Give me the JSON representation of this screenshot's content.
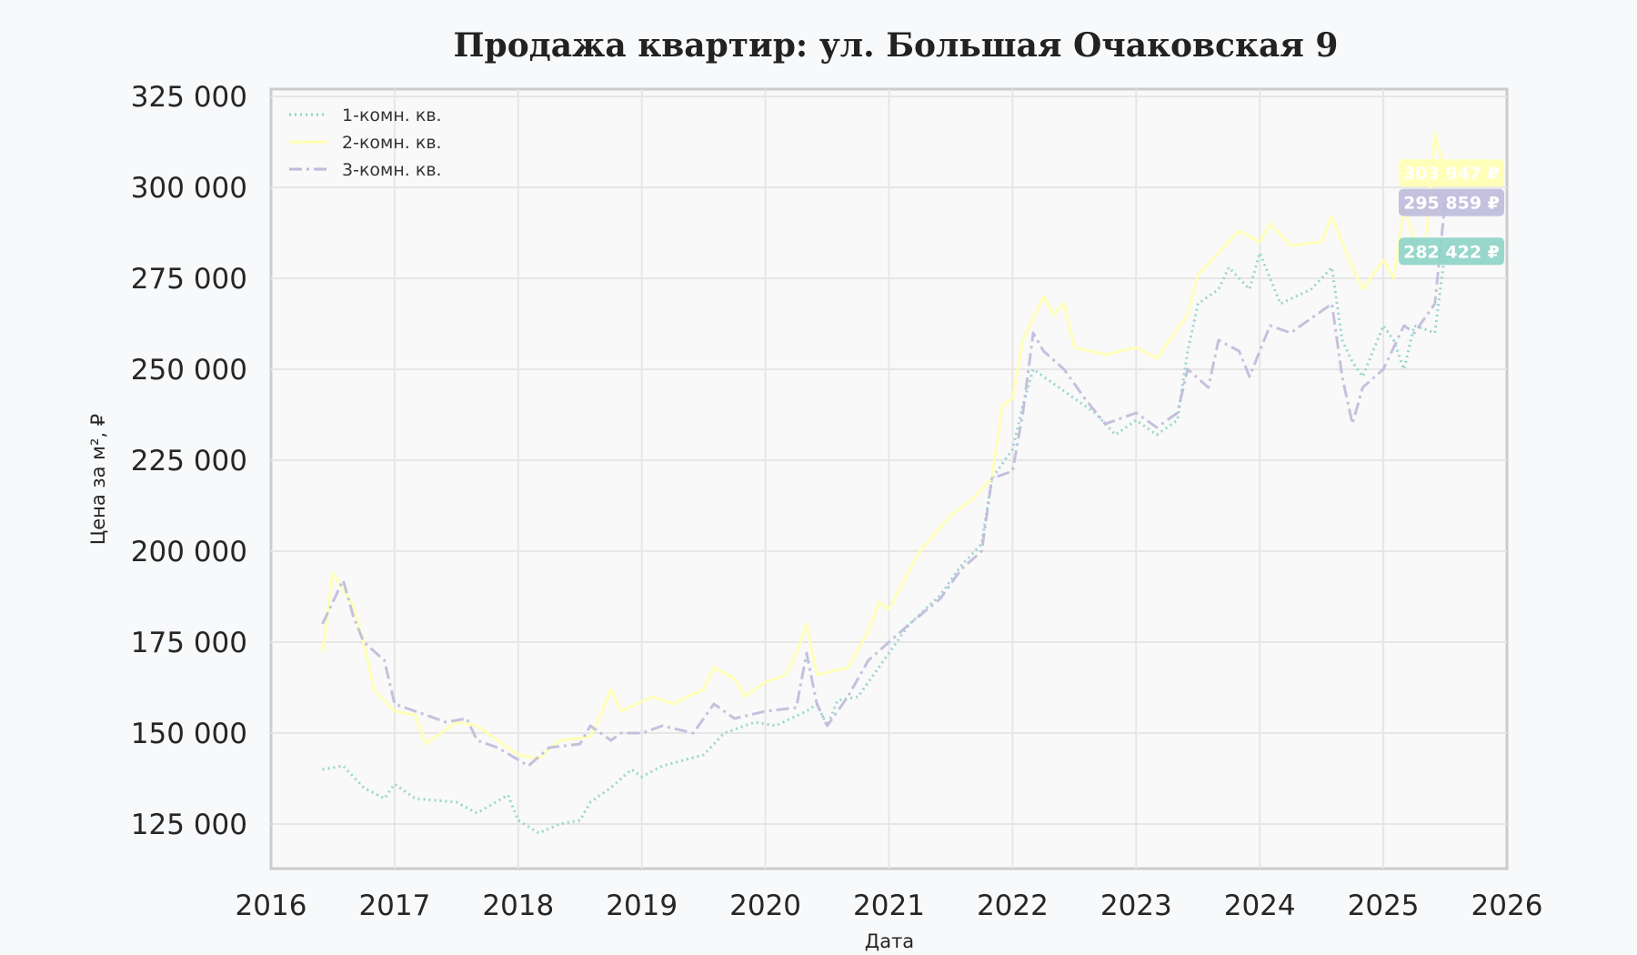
{
  "chart_data": {
    "type": "line",
    "title": "Продажа квартир: ул. Большая Очаковская 9",
    "xlabel": "Дата",
    "ylabel": "Цена за м², ₽",
    "xlim": [
      "2016-01",
      "2026-01"
    ],
    "ylim": [
      112750,
      327000
    ],
    "grid": true,
    "legend_position": "top-left",
    "x_ticks": [
      "2016",
      "2017",
      "2018",
      "2019",
      "2020",
      "2021",
      "2022",
      "2023",
      "2024",
      "2025",
      "2026"
    ],
    "y_ticks": [
      125000,
      150000,
      175000,
      200000,
      225000,
      250000,
      275000,
      300000,
      325000
    ],
    "y_tick_labels": [
      "125 000",
      "150 000",
      "175 000",
      "200 000",
      "225 000",
      "250 000",
      "275 000",
      "300 000",
      "325 000"
    ],
    "series": [
      {
        "name": "1-комн. кв.",
        "color": "#8dd3c7",
        "style": "dotted",
        "last_label": "282 422 ₽",
        "points": [
          [
            "2016-06",
            140000
          ],
          [
            "2016-08",
            141000
          ],
          [
            "2016-10",
            135000
          ],
          [
            "2016-12",
            132000
          ],
          [
            "2017-01",
            136000
          ],
          [
            "2017-03",
            132000
          ],
          [
            "2017-07",
            131000
          ],
          [
            "2017-09",
            128000
          ],
          [
            "2017-12",
            133000
          ],
          [
            "2018-01",
            126000
          ],
          [
            "2018-03",
            122500
          ],
          [
            "2018-05",
            125000
          ],
          [
            "2018-07",
            126000
          ],
          [
            "2018-08",
            131000
          ],
          [
            "2018-10",
            135000
          ],
          [
            "2018-12",
            140000
          ],
          [
            "2019-01",
            138000
          ],
          [
            "2019-03",
            141000
          ],
          [
            "2019-07",
            144000
          ],
          [
            "2019-09",
            150000
          ],
          [
            "2019-12",
            153000
          ],
          [
            "2020-02",
            152000
          ],
          [
            "2020-05",
            156000
          ],
          [
            "2020-06",
            158000
          ],
          [
            "2020-07",
            152000
          ],
          [
            "2020-08",
            159000
          ],
          [
            "2020-10",
            160000
          ],
          [
            "2021-01",
            172000
          ],
          [
            "2021-03",
            180000
          ],
          [
            "2021-06",
            188000
          ],
          [
            "2021-08",
            196000
          ],
          [
            "2021-10",
            202000
          ],
          [
            "2021-11",
            220000
          ],
          [
            "2022-01",
            228000
          ],
          [
            "2022-02",
            240000
          ],
          [
            "2022-03",
            250000
          ],
          [
            "2022-05",
            246000
          ],
          [
            "2022-07",
            242000
          ],
          [
            "2022-09",
            238000
          ],
          [
            "2022-11",
            232000
          ],
          [
            "2023-01",
            236000
          ],
          [
            "2023-03",
            232000
          ],
          [
            "2023-05",
            236000
          ],
          [
            "2023-06",
            255000
          ],
          [
            "2023-07",
            268000
          ],
          [
            "2023-09",
            272000
          ],
          [
            "2023-10",
            278000
          ],
          [
            "2023-12",
            272000
          ],
          [
            "2024-01",
            282000
          ],
          [
            "2024-03",
            268000
          ],
          [
            "2024-06",
            272000
          ],
          [
            "2024-08",
            278000
          ],
          [
            "2024-09",
            258000
          ],
          [
            "2024-10",
            252000
          ],
          [
            "2024-11",
            248000
          ],
          [
            "2025-01",
            262000
          ],
          [
            "2025-02",
            258000
          ],
          [
            "2025-03",
            250000
          ],
          [
            "2025-04",
            262000
          ],
          [
            "2025-06",
            260000
          ],
          [
            "2025-07",
            282422
          ]
        ]
      },
      {
        "name": "2-комн. кв.",
        "color": "#ffffb3",
        "style": "solid",
        "last_label": "303 947 ₽",
        "points": [
          [
            "2016-06",
            172000
          ],
          [
            "2016-07",
            194000
          ],
          [
            "2016-09",
            185000
          ],
          [
            "2016-10",
            175000
          ],
          [
            "2016-11",
            162000
          ],
          [
            "2017-01",
            156000
          ],
          [
            "2017-03",
            155000
          ],
          [
            "2017-04",
            147000
          ],
          [
            "2017-07",
            153000
          ],
          [
            "2017-09",
            152000
          ],
          [
            "2017-11",
            148000
          ],
          [
            "2018-01",
            144000
          ],
          [
            "2018-03",
            143000
          ],
          [
            "2018-05",
            148000
          ],
          [
            "2018-08",
            149000
          ],
          [
            "2018-09",
            155000
          ],
          [
            "2018-10",
            162000
          ],
          [
            "2018-11",
            156000
          ],
          [
            "2019-02",
            160000
          ],
          [
            "2019-04",
            158000
          ],
          [
            "2019-07",
            162000
          ],
          [
            "2019-08",
            168000
          ],
          [
            "2019-10",
            165000
          ],
          [
            "2019-11",
            160000
          ],
          [
            "2020-01",
            164000
          ],
          [
            "2020-03",
            166000
          ],
          [
            "2020-04",
            172000
          ],
          [
            "2020-05",
            180000
          ],
          [
            "2020-06",
            166000
          ],
          [
            "2020-09",
            168000
          ],
          [
            "2020-11",
            178000
          ],
          [
            "2020-12",
            186000
          ],
          [
            "2021-01",
            184000
          ],
          [
            "2021-03",
            195000
          ],
          [
            "2021-04",
            200000
          ],
          [
            "2021-07",
            210000
          ],
          [
            "2021-09",
            214000
          ],
          [
            "2021-11",
            220000
          ],
          [
            "2021-12",
            240000
          ],
          [
            "2022-01",
            242000
          ],
          [
            "2022-02",
            258000
          ],
          [
            "2022-04",
            270000
          ],
          [
            "2022-05",
            265000
          ],
          [
            "2022-06",
            268000
          ],
          [
            "2022-07",
            256000
          ],
          [
            "2022-10",
            254000
          ],
          [
            "2023-01",
            256000
          ],
          [
            "2023-03",
            253000
          ],
          [
            "2023-06",
            265000
          ],
          [
            "2023-07",
            276000
          ],
          [
            "2023-09",
            282000
          ],
          [
            "2023-11",
            288000
          ],
          [
            "2024-01",
            285000
          ],
          [
            "2024-02",
            290000
          ],
          [
            "2024-04",
            284000
          ],
          [
            "2024-07",
            285000
          ],
          [
            "2024-08",
            292000
          ],
          [
            "2024-10",
            278000
          ],
          [
            "2024-11",
            272000
          ],
          [
            "2025-01",
            280000
          ],
          [
            "2025-02",
            275000
          ],
          [
            "2025-03",
            295000
          ],
          [
            "2025-04",
            285000
          ],
          [
            "2025-05",
            280000
          ],
          [
            "2025-06",
            315000
          ],
          [
            "2025-07",
            303947
          ]
        ]
      },
      {
        "name": "3-комн. кв.",
        "color": "#bebada",
        "style": "dashdot",
        "last_label": "295 859 ₽",
        "points": [
          [
            "2016-06",
            180000
          ],
          [
            "2016-08",
            192000
          ],
          [
            "2016-09",
            182000
          ],
          [
            "2016-10",
            175000
          ],
          [
            "2016-12",
            170000
          ],
          [
            "2017-01",
            158000
          ],
          [
            "2017-03",
            156000
          ],
          [
            "2017-06",
            153000
          ],
          [
            "2017-08",
            154000
          ],
          [
            "2017-09",
            148000
          ],
          [
            "2017-11",
            146000
          ],
          [
            "2018-02",
            141000
          ],
          [
            "2018-04",
            146000
          ],
          [
            "2018-07",
            147000
          ],
          [
            "2018-08",
            152000
          ],
          [
            "2018-10",
            148000
          ],
          [
            "2018-11",
            150000
          ],
          [
            "2019-01",
            150000
          ],
          [
            "2019-03",
            152000
          ],
          [
            "2019-06",
            150000
          ],
          [
            "2019-08",
            158000
          ],
          [
            "2019-10",
            154000
          ],
          [
            "2020-01",
            156000
          ],
          [
            "2020-04",
            157000
          ],
          [
            "2020-05",
            172000
          ],
          [
            "2020-06",
            158000
          ],
          [
            "2020-07",
            152000
          ],
          [
            "2020-09",
            160000
          ],
          [
            "2020-11",
            170000
          ],
          [
            "2021-01",
            175000
          ],
          [
            "2021-03",
            180000
          ],
          [
            "2021-06",
            187000
          ],
          [
            "2021-08",
            195000
          ],
          [
            "2021-10",
            200000
          ],
          [
            "2021-11",
            220000
          ],
          [
            "2022-01",
            222000
          ],
          [
            "2022-02",
            238000
          ],
          [
            "2022-03",
            260000
          ],
          [
            "2022-04",
            255000
          ],
          [
            "2022-06",
            250000
          ],
          [
            "2022-08",
            242000
          ],
          [
            "2022-10",
            235000
          ],
          [
            "2023-01",
            238000
          ],
          [
            "2023-03",
            234000
          ],
          [
            "2023-05",
            238000
          ],
          [
            "2023-06",
            250000
          ],
          [
            "2023-08",
            245000
          ],
          [
            "2023-09",
            258000
          ],
          [
            "2023-11",
            255000
          ],
          [
            "2023-12",
            248000
          ],
          [
            "2024-02",
            262000
          ],
          [
            "2024-04",
            260000
          ],
          [
            "2024-08",
            268000
          ],
          [
            "2024-09",
            248000
          ],
          [
            "2024-10",
            235000
          ],
          [
            "2024-11",
            245000
          ],
          [
            "2025-01",
            250000
          ],
          [
            "2025-03",
            262000
          ],
          [
            "2025-04",
            260000
          ],
          [
            "2025-06",
            268000
          ],
          [
            "2025-07",
            295859
          ]
        ]
      }
    ]
  }
}
